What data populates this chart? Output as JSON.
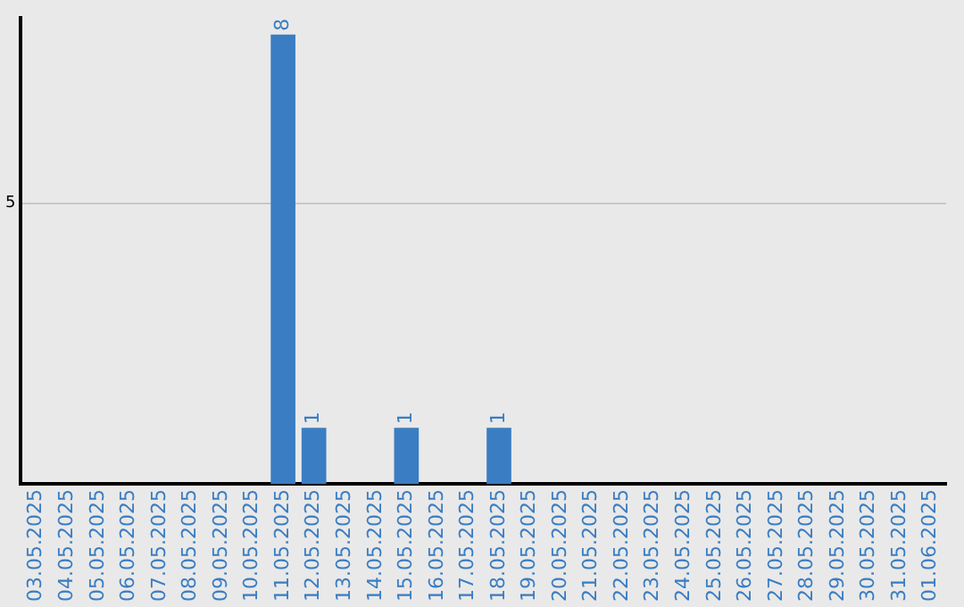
{
  "chart_data": {
    "type": "bar",
    "categories": [
      "03.05.2025",
      "04.05.2025",
      "05.05.2025",
      "06.05.2025",
      "07.05.2025",
      "08.05.2025",
      "09.05.2025",
      "10.05.2025",
      "11.05.2025",
      "12.05.2025",
      "13.05.2025",
      "14.05.2025",
      "15.05.2025",
      "16.05.2025",
      "17.05.2025",
      "18.05.2025",
      "19.05.2025",
      "20.05.2025",
      "21.05.2025",
      "22.05.2025",
      "23.05.2025",
      "24.05.2025",
      "25.05.2025",
      "26.05.2025",
      "27.05.2025",
      "28.05.2025",
      "29.05.2025",
      "30.05.2025",
      "31.05.2025",
      "01.06.2025"
    ],
    "values": [
      0,
      0,
      0,
      0,
      0,
      0,
      0,
      0,
      8,
      1,
      0,
      0,
      1,
      0,
      0,
      1,
      0,
      0,
      0,
      0,
      0,
      0,
      0,
      0,
      0,
      0,
      0,
      0,
      0,
      0
    ],
    "value_labels": [
      null,
      null,
      null,
      null,
      null,
      null,
      null,
      null,
      "8",
      "1",
      null,
      null,
      "1",
      null,
      null,
      "1",
      null,
      null,
      null,
      null,
      null,
      null,
      null,
      null,
      null,
      null,
      null,
      null,
      null,
      null
    ],
    "color": "#3a7dc2",
    "ylim": [
      0,
      8.3
    ],
    "yticks": [
      5
    ],
    "grid": "y",
    "legend": false
  }
}
